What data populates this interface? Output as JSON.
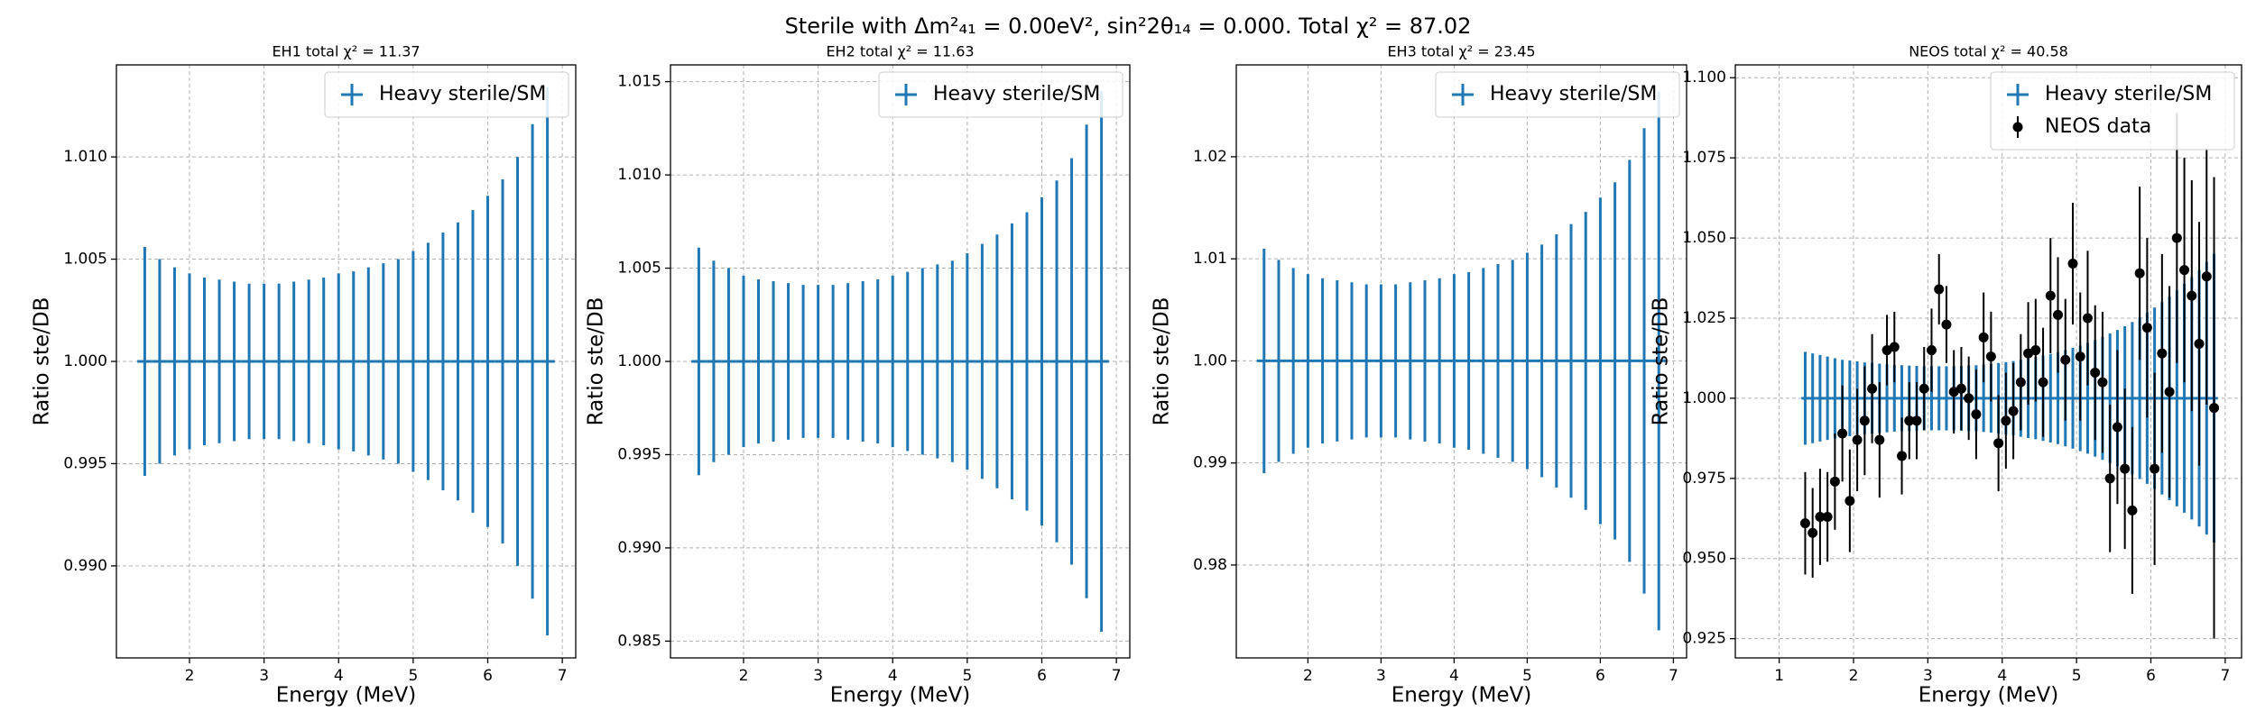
{
  "suptitle": "Sterile with Δm²₄₁ = 0.00eV², sin²2θ₁₄ = 0.000. Total χ² = 87.02",
  "chart_data": [
    {
      "type": "errorbar",
      "title": "EH1 total χ² = 11.37",
      "xlabel": "Energy (MeV)",
      "ylabel": "Ratio ste/DB",
      "xlim": [
        1.02,
        7.18
      ],
      "ylim": [
        0.9855,
        1.0145
      ],
      "xticks": [
        2,
        3,
        4,
        5,
        6,
        7
      ],
      "yticks": [
        {
          "value": 0.99,
          "label": "0.990"
        },
        {
          "value": 0.995,
          "label": "0.995"
        },
        {
          "value": 1.0,
          "label": "1.000"
        },
        {
          "value": 1.005,
          "label": "1.005"
        },
        {
          "value": 1.01,
          "label": "1.010"
        }
      ],
      "grid": true,
      "legend": "upper right",
      "series": [
        {
          "name": "Heavy sterile/SM",
          "color": "#1f77b4",
          "xerr": 0.1,
          "x": [
            1.4,
            1.6,
            1.8,
            2.0,
            2.2,
            2.4,
            2.6,
            2.8,
            3.0,
            3.2,
            3.4,
            3.6,
            3.8,
            4.0,
            4.2,
            4.4,
            4.6,
            4.8,
            5.0,
            5.2,
            5.4,
            5.6,
            5.8,
            6.0,
            6.2,
            6.4,
            6.6,
            6.8
          ],
          "values": [
            1,
            1,
            1,
            1,
            1,
            1,
            1,
            1,
            1,
            1,
            1,
            1,
            1,
            1,
            1,
            1,
            1,
            1,
            1,
            1,
            1,
            1,
            1,
            1,
            1,
            1,
            1,
            1
          ],
          "errors": [
            0.0056,
            0.005,
            0.0046,
            0.0043,
            0.0041,
            0.004,
            0.0039,
            0.0038,
            0.0038,
            0.0038,
            0.0039,
            0.004,
            0.0041,
            0.0043,
            0.0044,
            0.0046,
            0.0048,
            0.005,
            0.0054,
            0.0058,
            0.0063,
            0.0068,
            0.0074,
            0.0081,
            0.0089,
            0.01,
            0.0116,
            0.0134
          ]
        }
      ]
    },
    {
      "type": "errorbar",
      "title": "EH2 total χ² = 11.63",
      "xlabel": "Energy (MeV)",
      "ylabel": "Ratio ste/DB",
      "xlim": [
        1.02,
        7.18
      ],
      "ylim": [
        0.9841,
        1.0159
      ],
      "xticks": [
        2,
        3,
        4,
        5,
        6,
        7
      ],
      "yticks": [
        {
          "value": 0.985,
          "label": "0.985"
        },
        {
          "value": 0.99,
          "label": "0.990"
        },
        {
          "value": 0.995,
          "label": "0.995"
        },
        {
          "value": 1.0,
          "label": "1.000"
        },
        {
          "value": 1.005,
          "label": "1.005"
        },
        {
          "value": 1.01,
          "label": "1.010"
        },
        {
          "value": 1.015,
          "label": "1.015"
        }
      ],
      "grid": true,
      "legend": "upper right",
      "series": [
        {
          "name": "Heavy sterile/SM",
          "color": "#1f77b4",
          "xerr": 0.1,
          "x": [
            1.4,
            1.6,
            1.8,
            2.0,
            2.2,
            2.4,
            2.6,
            2.8,
            3.0,
            3.2,
            3.4,
            3.6,
            3.8,
            4.0,
            4.2,
            4.4,
            4.6,
            4.8,
            5.0,
            5.2,
            5.4,
            5.6,
            5.8,
            6.0,
            6.2,
            6.4,
            6.6,
            6.8
          ],
          "values": [
            1,
            1,
            1,
            1,
            1,
            1,
            1,
            1,
            1,
            1,
            1,
            1,
            1,
            1,
            1,
            1,
            1,
            1,
            1,
            1,
            1,
            1,
            1,
            1,
            1,
            1,
            1,
            1
          ],
          "errors": [
            0.0061,
            0.0054,
            0.005,
            0.0046,
            0.0044,
            0.0043,
            0.0042,
            0.0041,
            0.0041,
            0.0041,
            0.0042,
            0.0043,
            0.0044,
            0.0046,
            0.0048,
            0.005,
            0.0052,
            0.0054,
            0.0058,
            0.0063,
            0.0068,
            0.0074,
            0.008,
            0.0088,
            0.0097,
            0.0109,
            0.0127,
            0.0145
          ]
        }
      ]
    },
    {
      "type": "errorbar",
      "title": "EH3 total χ² = 23.45",
      "xlabel": "Energy (MeV)",
      "ylabel": "Ratio ste/DB",
      "xlim": [
        1.02,
        7.18
      ],
      "ylim": [
        0.9709,
        1.029
      ],
      "xticks": [
        2,
        3,
        4,
        5,
        6,
        7
      ],
      "yticks": [
        {
          "value": 0.98,
          "label": "0.98"
        },
        {
          "value": 0.99,
          "label": "0.99"
        },
        {
          "value": 1.0,
          "label": "1.00"
        },
        {
          "value": 1.01,
          "label": "1.01"
        },
        {
          "value": 1.02,
          "label": "1.02"
        }
      ],
      "grid": true,
      "legend": "upper right",
      "series": [
        {
          "name": "Heavy sterile/SM",
          "color": "#1f77b4",
          "xerr": 0.1,
          "x": [
            1.4,
            1.6,
            1.8,
            2.0,
            2.2,
            2.4,
            2.6,
            2.8,
            3.0,
            3.2,
            3.4,
            3.6,
            3.8,
            4.0,
            4.2,
            4.4,
            4.6,
            4.8,
            5.0,
            5.2,
            5.4,
            5.6,
            5.8,
            6.0,
            6.2,
            6.4,
            6.6,
            6.8
          ],
          "values": [
            1,
            1,
            1,
            1,
            1,
            1,
            1,
            1,
            1,
            1,
            1,
            1,
            1,
            1,
            1,
            1,
            1,
            1,
            1,
            1,
            1,
            1,
            1,
            1,
            1,
            1,
            1,
            1
          ],
          "errors": [
            0.011,
            0.0099,
            0.0091,
            0.0085,
            0.0081,
            0.0079,
            0.0077,
            0.0075,
            0.0075,
            0.0075,
            0.0077,
            0.0079,
            0.0081,
            0.0085,
            0.0087,
            0.0091,
            0.0095,
            0.0099,
            0.0106,
            0.0114,
            0.0124,
            0.0134,
            0.0146,
            0.016,
            0.0175,
            0.0197,
            0.0228,
            0.0264
          ]
        }
      ]
    },
    {
      "type": "errorbar",
      "title": "NEOS total χ² = 40.58",
      "xlabel": "Energy (MeV)",
      "ylabel": "Ratio ste/DB",
      "xlim": [
        0.41,
        7.22
      ],
      "ylim": [
        0.919,
        1.104
      ],
      "xticks": [
        1,
        2,
        3,
        4,
        5,
        6,
        7
      ],
      "yticks": [
        {
          "value": 0.925,
          "label": "0.925"
        },
        {
          "value": 0.95,
          "label": "0.950"
        },
        {
          "value": 0.975,
          "label": "0.975"
        },
        {
          "value": 1.0,
          "label": "1.000"
        },
        {
          "value": 1.025,
          "label": "1.025"
        },
        {
          "value": 1.05,
          "label": "1.050"
        },
        {
          "value": 1.075,
          "label": "1.075"
        },
        {
          "value": 1.1,
          "label": "1.100"
        }
      ],
      "grid": true,
      "legend": "upper right",
      "series": [
        {
          "name": "Heavy sterile/SM",
          "color": "#1f77b4",
          "xerr": 0.05,
          "x": [
            1.35,
            1.45,
            1.55,
            1.65,
            1.75,
            1.85,
            1.95,
            2.05,
            2.15,
            2.25,
            2.35,
            2.45,
            2.55,
            2.65,
            2.75,
            2.85,
            2.95,
            3.05,
            3.15,
            3.25,
            3.35,
            3.45,
            3.55,
            3.65,
            3.75,
            3.85,
            3.95,
            4.05,
            4.15,
            4.25,
            4.35,
            4.45,
            4.55,
            4.65,
            4.75,
            4.85,
            4.95,
            5.05,
            5.15,
            5.25,
            5.35,
            5.45,
            5.55,
            5.65,
            5.75,
            5.85,
            5.95,
            6.05,
            6.15,
            6.25,
            6.35,
            6.45,
            6.55,
            6.65,
            6.75,
            6.85
          ],
          "values": [
            1,
            1,
            1,
            1,
            1,
            1,
            1,
            1,
            1,
            1,
            1,
            1,
            1,
            1,
            1,
            1,
            1,
            1,
            1,
            1,
            1,
            1,
            1,
            1,
            1,
            1,
            1,
            1,
            1,
            1,
            1,
            1,
            1,
            1,
            1,
            1,
            1,
            1,
            1,
            1,
            1,
            1,
            1,
            1,
            1,
            1,
            1,
            1,
            1,
            1,
            1,
            1,
            1,
            1,
            1,
            1
          ],
          "errors": [
            0.0145,
            0.014,
            0.0135,
            0.013,
            0.0125,
            0.012,
            0.0118,
            0.0115,
            0.0112,
            0.011,
            0.0108,
            0.0106,
            0.0104,
            0.0103,
            0.0102,
            0.0101,
            0.01,
            0.01,
            0.01,
            0.01,
            0.01,
            0.0101,
            0.0102,
            0.0103,
            0.0105,
            0.0107,
            0.011,
            0.0113,
            0.0116,
            0.012,
            0.0124,
            0.0128,
            0.0133,
            0.0138,
            0.0143,
            0.015,
            0.0157,
            0.0165,
            0.0173,
            0.0182,
            0.0192,
            0.0202,
            0.0213,
            0.0225,
            0.0238,
            0.0252,
            0.0267,
            0.0283,
            0.03,
            0.0318,
            0.0337,
            0.0357,
            0.0378,
            0.04,
            0.0425,
            0.045
          ]
        },
        {
          "name": "NEOS data",
          "color": "#000000",
          "marker": "o",
          "x": [
            1.35,
            1.45,
            1.55,
            1.65,
            1.75,
            1.85,
            1.95,
            2.05,
            2.15,
            2.25,
            2.35,
            2.45,
            2.55,
            2.65,
            2.75,
            2.85,
            2.95,
            3.05,
            3.15,
            3.25,
            3.35,
            3.45,
            3.55,
            3.65,
            3.75,
            3.85,
            3.95,
            4.05,
            4.15,
            4.25,
            4.35,
            4.45,
            4.55,
            4.65,
            4.75,
            4.85,
            4.95,
            5.05,
            5.15,
            5.25,
            5.35,
            5.45,
            5.55,
            5.65,
            5.75,
            5.85,
            5.95,
            6.05,
            6.15,
            6.25,
            6.35,
            6.45,
            6.55,
            6.65,
            6.75,
            6.85
          ],
          "values": [
            0.961,
            0.958,
            0.963,
            0.963,
            0.974,
            0.989,
            0.968,
            0.987,
            0.993,
            1.003,
            0.987,
            1.015,
            1.016,
            0.982,
            0.993,
            0.993,
            1.003,
            1.015,
            1.034,
            1.023,
            1.002,
            1.003,
            1.0,
            0.995,
            1.019,
            1.013,
            0.986,
            0.993,
            0.996,
            1.005,
            1.014,
            1.015,
            1.005,
            1.032,
            1.026,
            1.012,
            1.042,
            1.013,
            1.025,
            1.008,
            1.005,
            0.975,
            0.991,
            0.978,
            0.965,
            1.039,
            1.022,
            0.978,
            1.014,
            1.002,
            1.05,
            1.04,
            1.032,
            1.017,
            1.038,
            0.997
          ],
          "errors": [
            0.016,
            0.014,
            0.015,
            0.014,
            0.015,
            0.015,
            0.016,
            0.016,
            0.017,
            0.017,
            0.018,
            0.011,
            0.011,
            0.012,
            0.012,
            0.012,
            0.013,
            0.013,
            0.011,
            0.012,
            0.013,
            0.013,
            0.013,
            0.014,
            0.014,
            0.014,
            0.015,
            0.015,
            0.015,
            0.015,
            0.016,
            0.016,
            0.017,
            0.018,
            0.018,
            0.019,
            0.019,
            0.02,
            0.021,
            0.021,
            0.022,
            0.023,
            0.024,
            0.025,
            0.026,
            0.027,
            0.028,
            0.03,
            0.031,
            0.033,
            0.039,
            0.035,
            0.036,
            0.038,
            0.04,
            0.072
          ]
        }
      ]
    }
  ]
}
